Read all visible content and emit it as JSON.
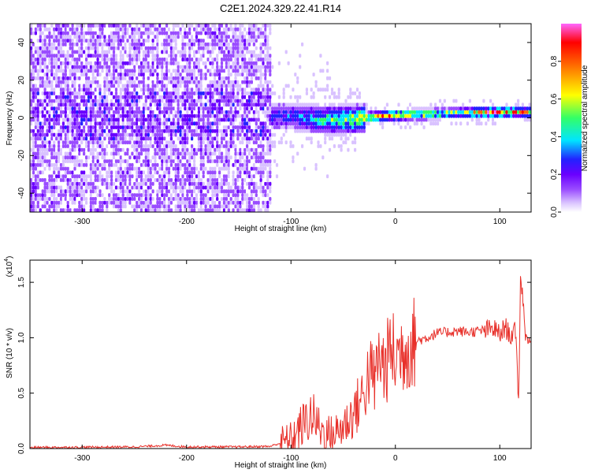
{
  "page_title": "C2E1.2024.329.22.41.R14",
  "colors": {
    "signal_trace": "#e8302a",
    "colormap": [
      "#ffffff",
      "#d9c2ff",
      "#9a4dff",
      "#6a00ff",
      "#2222ff",
      "#00e5ff",
      "#33ff66",
      "#ffff00",
      "#ff6a00",
      "#ff0000",
      "#ff66ff"
    ]
  },
  "chart_data": [
    {
      "type": "heatmap",
      "xlabel": "Height of straight line (km)",
      "ylabel": "Frequency (Hz)",
      "xlim": [
        -350,
        130
      ],
      "ylim": [
        -50,
        50
      ],
      "x_ticks": [
        -300,
        -200,
        -100,
        0,
        100
      ],
      "y_ticks": [
        -40,
        -20,
        0,
        20,
        40
      ],
      "x_tick_labels": [
        "-300",
        "-200",
        "-100",
        "0",
        "100"
      ],
      "y_tick_labels": [
        "-40",
        "-20",
        "0",
        "20",
        "40"
      ],
      "colorbar": {
        "label": "Normalized spectral amplitude",
        "range": [
          0,
          1
        ],
        "ticks": [
          0.0,
          0.2,
          0.4,
          0.6,
          0.8
        ],
        "tick_labels": [
          "0.0",
          "0.2",
          "0.4",
          "0.6",
          "0.8"
        ]
      },
      "noise_region_x": [
        -350,
        -120
      ],
      "signal_center_freq": [
        [
          -110,
          0
        ],
        [
          -90,
          -1
        ],
        [
          -70,
          -2
        ],
        [
          -50,
          -2
        ],
        [
          -30,
          -1
        ],
        [
          -10,
          0
        ],
        [
          0,
          0.5
        ],
        [
          30,
          1
        ],
        [
          60,
          1.5
        ],
        [
          90,
          2
        ],
        [
          130,
          2
        ]
      ],
      "signal_peak_amplitude": [
        [
          -240,
          0.35
        ],
        [
          -150,
          0.3
        ],
        [
          -100,
          0.4
        ],
        [
          -70,
          0.6
        ],
        [
          -40,
          0.75
        ],
        [
          -20,
          0.9
        ],
        [
          0,
          0.95
        ],
        [
          30,
          0.8
        ],
        [
          60,
          0.7
        ],
        [
          90,
          0.95
        ],
        [
          110,
          0.9
        ],
        [
          130,
          0.8
        ]
      ]
    },
    {
      "type": "line",
      "xlabel": "Height of straight line (km)",
      "ylabel": "SNR (10 * v/v)",
      "y_multiplier_label": "(x10",
      "y_multiplier_exp": "4",
      "y_multiplier_close": ")",
      "xlim": [
        -350,
        130
      ],
      "ylim": [
        0,
        1.7
      ],
      "x_ticks": [
        -300,
        -200,
        -100,
        0,
        100
      ],
      "y_ticks": [
        0.0,
        0.5,
        1.0,
        1.5
      ],
      "x_tick_labels": [
        "-300",
        "-200",
        "-100",
        "0",
        "100"
      ],
      "y_tick_labels": [
        "0.0",
        "0.5",
        "1.0",
        "1.5"
      ],
      "series": [
        {
          "x": [
            -350,
            -300,
            -250,
            -220,
            -200,
            -150,
            -120,
            -100,
            -90,
            -80,
            -70,
            -60,
            -50,
            -40,
            -30,
            -25,
            -20,
            -15,
            -10,
            -5,
            0,
            10,
            20,
            30,
            40,
            50,
            60,
            70,
            80,
            90,
            95,
            100,
            105,
            110,
            115,
            118,
            120,
            125,
            130
          ],
          "y": [
            0.01,
            0.012,
            0.015,
            0.03,
            0.015,
            0.015,
            0.02,
            0.08,
            0.2,
            0.3,
            0.15,
            0.12,
            0.2,
            0.32,
            0.5,
            0.7,
            0.6,
            0.85,
            0.7,
            0.9,
            0.82,
            0.92,
            0.97,
            1.0,
            1.04,
            1.05,
            1.06,
            1.05,
            1.06,
            1.07,
            1.08,
            1.02,
            1.1,
            1.02,
            1.05,
            0.45,
            1.6,
            1.0,
            0.98
          ]
        }
      ]
    }
  ]
}
